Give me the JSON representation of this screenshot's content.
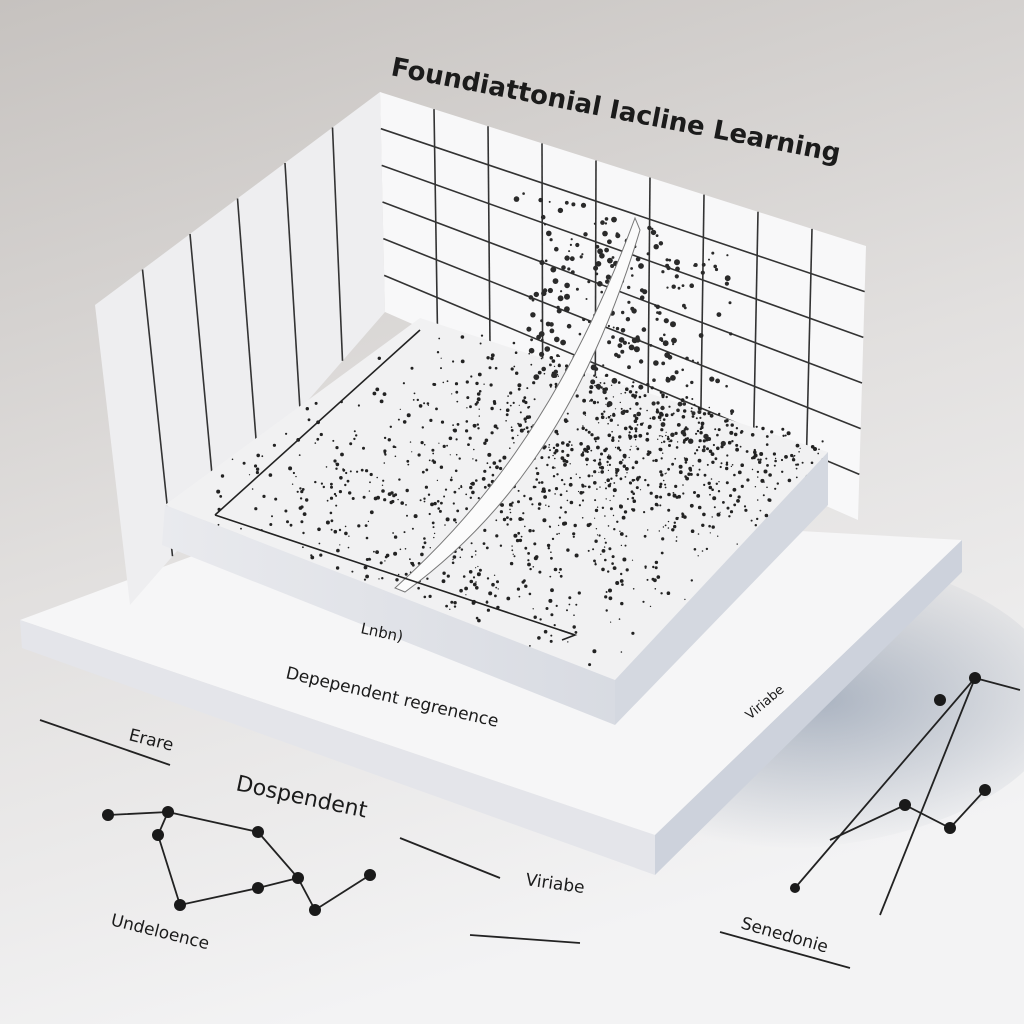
{
  "title": "Foundiattonial Iacline Learning",
  "platform_labels": {
    "axis_x": "Lnbn)",
    "front": "Depependent regrenence",
    "side": "Viriabe"
  },
  "notes": {
    "left_arrow": "Erare",
    "center": "Dospendent",
    "right_arrow": "Viriabe",
    "bottom_left": "Undeloence",
    "bottom_right": "Senedonie"
  }
}
